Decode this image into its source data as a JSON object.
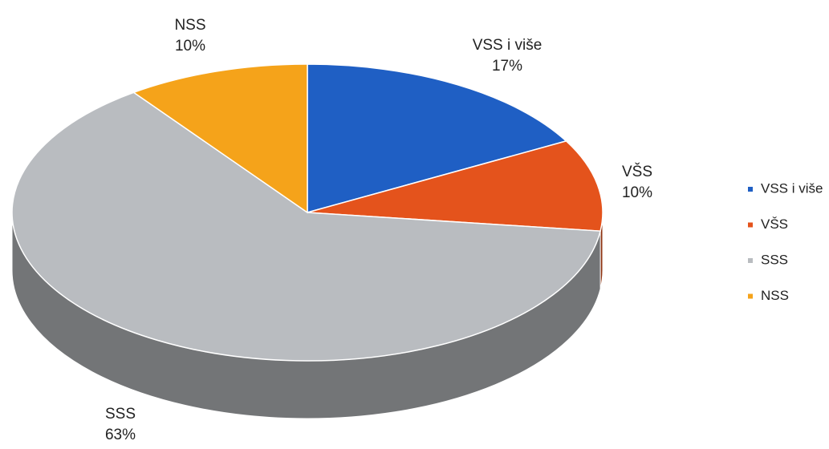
{
  "chart_data": {
    "type": "pie",
    "categories": [
      "VSS i više",
      "VŠS",
      "SSS",
      "NSS"
    ],
    "values": [
      17,
      10,
      63,
      10
    ],
    "value_labels": [
      "17%",
      "10%",
      "63%",
      "10%"
    ],
    "colors": [
      "#1f5fc4",
      "#e4531c",
      "#b9bcc0",
      "#f5a31a"
    ],
    "legend": "right"
  }
}
